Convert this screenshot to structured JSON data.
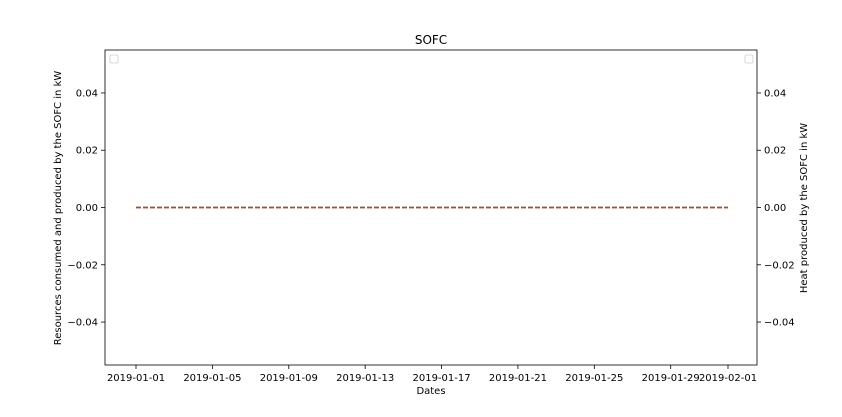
{
  "chart_data": {
    "type": "line",
    "title": "SOFC",
    "xlabel": "Dates",
    "ylabel_left": "Resources consumed and produced by the SOFC in kW",
    "ylabel_right": "Heat produced by the SOFC in kW",
    "x_range": [
      "2019-01-01",
      "2019-02-01"
    ],
    "x_ticks": [
      "2019-01-01",
      "2019-01-05",
      "2019-01-09",
      "2019-01-13",
      "2019-01-17",
      "2019-01-21",
      "2019-01-25",
      "2019-01-29",
      "2019-02-01"
    ],
    "ylim_left": [
      -0.055,
      0.055
    ],
    "ylim_right": [
      -0.055,
      0.055
    ],
    "y_ticks_left": [
      "0.04",
      "0.02",
      "0.00",
      "−0.02",
      "−0.04"
    ],
    "y_ticks_right": [
      "0.04",
      "0.02",
      "0.00",
      "−0.02",
      "−0.04"
    ],
    "y_tick_values": [
      0.04,
      0.02,
      0.0,
      -0.02,
      -0.04
    ],
    "grid": false,
    "legend_placement": [
      "top-left",
      "top-right"
    ],
    "series": [
      {
        "axis": "left",
        "color": "#1f77b4",
        "style": "dashed",
        "x": [
          "2019-01-01",
          "2019-02-01"
        ],
        "y": [
          0,
          0
        ]
      },
      {
        "axis": "left",
        "color": "#ff7f0e",
        "style": "dashed",
        "x": [
          "2019-01-01",
          "2019-02-01"
        ],
        "y": [
          0,
          0
        ]
      },
      {
        "axis": "right",
        "color": "#8c564b",
        "style": "dashed",
        "x": [
          "2019-01-01",
          "2019-02-01"
        ],
        "y": [
          0,
          0
        ]
      }
    ]
  }
}
